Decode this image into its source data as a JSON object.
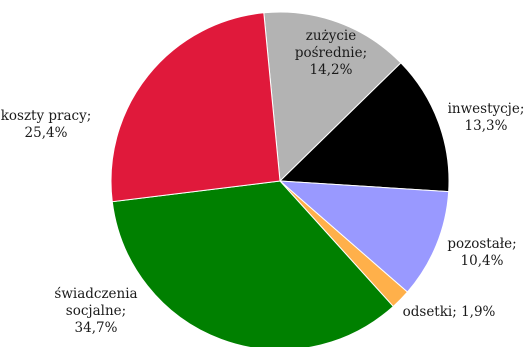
{
  "chart_data": {
    "type": "pie",
    "title": "",
    "slices": [
      {
        "label": "zużycie pośrednie",
        "value": 14.2,
        "value_label": "14,2%",
        "color": "#b3b3b3"
      },
      {
        "label": "inwestycje",
        "value": 13.3,
        "value_label": "13,3%",
        "color": "#000000"
      },
      {
        "label": "pozostałe",
        "value": 10.4,
        "value_label": "10,4%",
        "color": "#9999ff"
      },
      {
        "label": "odsetki",
        "value": 1.9,
        "value_label": "1,9%",
        "color": "#ffb04a"
      },
      {
        "label": "świadczenia socjalne",
        "value": 34.7,
        "value_label": "34,7%",
        "color": "#008000"
      },
      {
        "label": "koszty pracy",
        "value": 25.4,
        "value_label": "25,4%",
        "color": "#e0193b"
      }
    ],
    "label_lines": [
      [
        "zużycie",
        "pośrednie;",
        "14,2%"
      ],
      [
        "inwestycje;",
        "13,3%"
      ],
      [
        "pozostałe;",
        "10,4%"
      ],
      [
        "odsetki; 1,9%"
      ],
      [
        "świadczenia",
        "socjalne;",
        "34,7%"
      ],
      [
        "koszty pracy;",
        "25,4%"
      ]
    ],
    "legend": "none"
  }
}
